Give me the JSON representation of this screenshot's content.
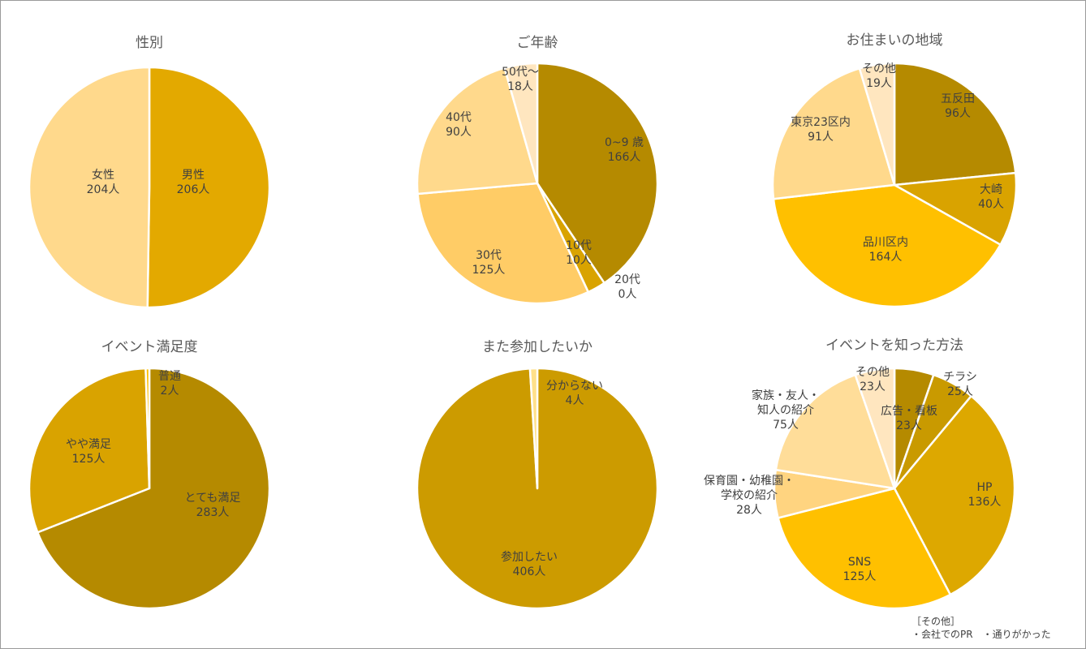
{
  "chart_data": [
    {
      "type": "pie",
      "title": "性別",
      "slices": [
        {
          "label": "男性",
          "value": 206,
          "value_label": "206人",
          "color": "#E3A900"
        },
        {
          "label": "女性",
          "value": 204,
          "value_label": "204人",
          "color": "#FFD98C"
        }
      ]
    },
    {
      "type": "pie",
      "title": "ご年齢",
      "slices": [
        {
          "label": "0~9 歳",
          "value": 166,
          "value_label": "166人",
          "color": "#B58A00"
        },
        {
          "label": "10代",
          "value": 10,
          "value_label": "10人",
          "color": "#D9A300"
        },
        {
          "label": "20代",
          "value": 0,
          "value_label": "0人",
          "color": "#F5C000"
        },
        {
          "label": "30代",
          "value": 125,
          "value_label": "125人",
          "color": "#FFCC66"
        },
        {
          "label": "40代",
          "value": 90,
          "value_label": "90人",
          "color": "#FFD98C"
        },
        {
          "label": "50代～",
          "value": 18,
          "value_label": "18人",
          "color": "#FFE6BF"
        }
      ]
    },
    {
      "type": "pie",
      "title": "お住まいの地域",
      "slices": [
        {
          "label": "五反田",
          "value": 96,
          "value_label": "96人",
          "color": "#B58A00"
        },
        {
          "label": "大崎",
          "value": 40,
          "value_label": "40人",
          "color": "#D9A300"
        },
        {
          "label": "品川区内",
          "value": 164,
          "value_label": "164人",
          "color": "#FFC000"
        },
        {
          "label": "東京23区内",
          "value": 91,
          "value_label": "91人",
          "color": "#FFD98C"
        },
        {
          "label": "その他",
          "value": 19,
          "value_label": "19人",
          "color": "#FFE6BF"
        }
      ]
    },
    {
      "type": "pie",
      "title": "イベント満足度",
      "slices": [
        {
          "label": "とても満足",
          "value": 283,
          "value_label": "283人",
          "color": "#B58A00"
        },
        {
          "label": "やや満足",
          "value": 125,
          "value_label": "125人",
          "color": "#D9A300"
        },
        {
          "label": "普通",
          "value": 2,
          "value_label": "2人",
          "color": "#FFC000"
        }
      ]
    },
    {
      "type": "pie",
      "title": "また参加したいか",
      "slices": [
        {
          "label": "参加したい",
          "value": 406,
          "value_label": "406人",
          "color": "#CC9B00"
        },
        {
          "label": "分からない",
          "value": 4,
          "value_label": "4人",
          "color": "#FFE08A"
        }
      ]
    },
    {
      "type": "pie",
      "title": "イベントを知った方法",
      "slices": [
        {
          "label": "広告・看板",
          "value": 23,
          "value_label": "23人",
          "color": "#B58A00"
        },
        {
          "label": "チラシ",
          "value": 25,
          "value_label": "25人",
          "color": "#C99A00"
        },
        {
          "label": "HP",
          "value": 136,
          "value_label": "136人",
          "color": "#DDA800"
        },
        {
          "label": "SNS",
          "value": 125,
          "value_label": "125人",
          "color": "#FFC000"
        },
        {
          "label": "保育園・幼稚園・学校の紹介",
          "value": 28,
          "value_label": "28人",
          "color": "#FFD480"
        },
        {
          "label": "家族・友人・知人の紹介",
          "value": 75,
          "value_label": "75人",
          "color": "#FFDD99"
        },
        {
          "label": "その他",
          "value": 23,
          "value_label": "23人",
          "color": "#FFE6BF"
        }
      ]
    }
  ],
  "note": {
    "heading": "［その他］",
    "items": "・会社でのPR　・通りがかった"
  }
}
